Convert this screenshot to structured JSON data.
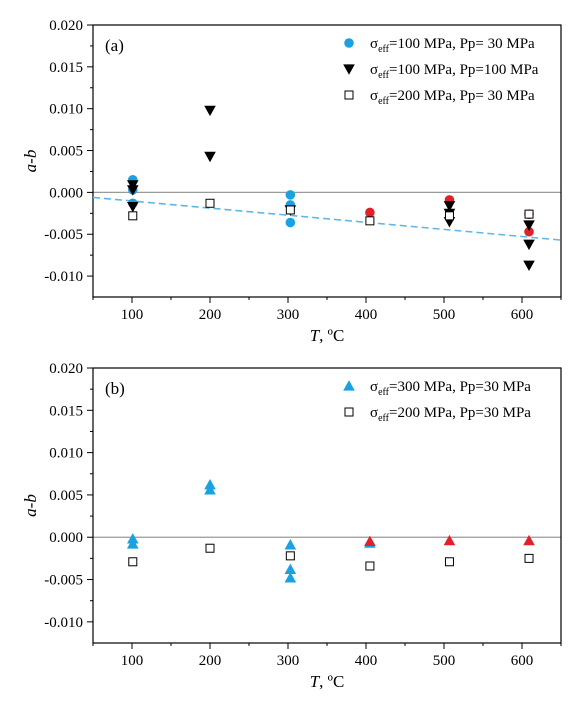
{
  "chart_data": [
    {
      "type": "scatter",
      "panel_label": "(a)",
      "xlabel": {
        "italic": "T",
        "rest": ", ºC"
      },
      "ylabel": "a-b",
      "xlim": [
        50,
        650
      ],
      "ylim": [
        -0.0125,
        0.02
      ],
      "xticks": [
        100,
        200,
        300,
        400,
        500,
        600
      ],
      "yticks": [
        -0.01,
        -0.005,
        0.0,
        0.005,
        0.01,
        0.015,
        0.02
      ],
      "ytick_labels": [
        "-0.010",
        "-0.005",
        "0.000",
        "0.005",
        "0.010",
        "0.015",
        "0.020"
      ],
      "legend_position": "top-right",
      "zero_line": true,
      "trendline": {
        "x": [
          50,
          650
        ],
        "y": [
          -0.0006,
          -0.0057
        ],
        "color": "#5bb8e6",
        "style": "dashed"
      },
      "legend": [
        {
          "sigma": "σ",
          "sub": "eff",
          "text": "=100 MPa, Pp= 30 MPa",
          "marker": "circle",
          "color": "#1aa1e1"
        },
        {
          "sigma": "σ",
          "sub": "eff",
          "text": "=100 MPa, Pp=100 MPa",
          "marker": "triangle-down",
          "color": "#000000"
        },
        {
          "sigma": "σ",
          "sub": "eff",
          "text": "=200 MPa, Pp= 30 MPa",
          "marker": "square-open",
          "color": "#000000"
        }
      ],
      "series": [
        {
          "marker": "circle",
          "color": "#1aa1e1",
          "points": [
            [
              101,
              0.0015
            ],
            [
              101,
              0.0003
            ],
            [
              101,
              -0.0013
            ],
            [
              303,
              -0.0003
            ],
            [
              303,
              -0.0015
            ],
            [
              303,
              -0.0036
            ]
          ]
        },
        {
          "marker": "circle",
          "color": "#e0202b",
          "points": [
            [
              405,
              -0.0024
            ],
            [
              507,
              -0.0009
            ],
            [
              609,
              -0.0026
            ],
            [
              609,
              -0.0047
            ]
          ]
        },
        {
          "marker": "triangle-down",
          "color": "#000000",
          "points": [
            [
              101,
              0.0009
            ],
            [
              101,
              0.0003
            ],
            [
              101,
              -0.0017
            ],
            [
              200,
              0.0098
            ],
            [
              200,
              0.0043
            ],
            [
              303,
              -0.0021
            ],
            [
              507,
              -0.0016
            ],
            [
              507,
              -0.0025
            ],
            [
              507,
              -0.0035
            ],
            [
              609,
              -0.0039
            ],
            [
              609,
              -0.0062
            ],
            [
              609,
              -0.0087
            ]
          ]
        },
        {
          "marker": "square-open",
          "color": "#000000",
          "points": [
            [
              101,
              -0.0028
            ],
            [
              200,
              -0.0013
            ],
            [
              303,
              -0.0021
            ],
            [
              405,
              -0.0034
            ],
            [
              507,
              -0.0028
            ],
            [
              609,
              -0.0026
            ]
          ]
        }
      ]
    },
    {
      "type": "scatter",
      "panel_label": "(b)",
      "xlabel": {
        "italic": "T",
        "rest": ", ºC"
      },
      "ylabel": "a-b",
      "xlim": [
        50,
        650
      ],
      "ylim": [
        -0.0125,
        0.02
      ],
      "xticks": [
        100,
        200,
        300,
        400,
        500,
        600
      ],
      "yticks": [
        -0.01,
        -0.005,
        0.0,
        0.005,
        0.01,
        0.015,
        0.02
      ],
      "ytick_labels": [
        "-0.010",
        "-0.005",
        "0.000",
        "0.005",
        "0.010",
        "0.015",
        "0.020"
      ],
      "legend_position": "top-right",
      "zero_line": true,
      "legend": [
        {
          "sigma": "σ",
          "sub": "eff",
          "text": "=300 MPa, Pp=30 MPa",
          "marker": "triangle-up",
          "color": "#1aa1e1"
        },
        {
          "sigma": "σ",
          "sub": "eff",
          "text": "=200 MPa, Pp=30 MPa",
          "marker": "square-open",
          "color": "#000000"
        }
      ],
      "series": [
        {
          "marker": "triangle-up",
          "color": "#1aa1e1",
          "points": [
            [
              101,
              -0.0002
            ],
            [
              101,
              -0.0008
            ],
            [
              200,
              0.0062
            ],
            [
              200,
              0.0056
            ],
            [
              303,
              -0.0009
            ],
            [
              303,
              -0.0038
            ],
            [
              303,
              -0.0048
            ],
            [
              405,
              -0.0007
            ]
          ]
        },
        {
          "marker": "triangle-up",
          "color": "#e0202b",
          "points": [
            [
              405,
              -0.0005
            ],
            [
              507,
              -0.0004
            ],
            [
              609,
              -0.0004
            ]
          ]
        },
        {
          "marker": "square-open",
          "color": "#000000",
          "points": [
            [
              101,
              -0.0029
            ],
            [
              200,
              -0.0013
            ],
            [
              303,
              -0.0022
            ],
            [
              405,
              -0.0034
            ],
            [
              507,
              -0.0029
            ],
            [
              609,
              -0.0025
            ]
          ]
        }
      ]
    }
  ]
}
